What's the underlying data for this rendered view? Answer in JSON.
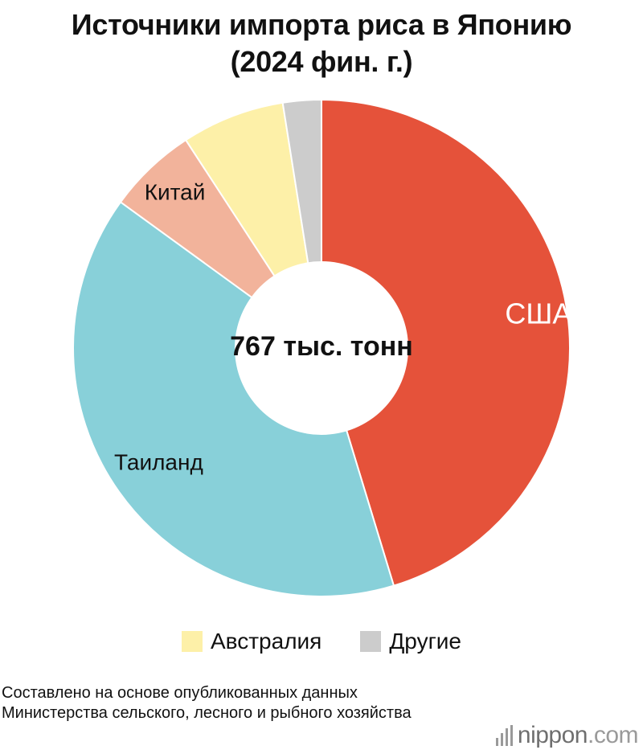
{
  "title_line1": "Источники импорта риса в Японию",
  "title_line2": "(2024 фин. г.)",
  "chart_data": {
    "type": "pie",
    "title": "Источники импорта риса в Японию (2024 фин. г.)",
    "center_label": "767 тыс. тонн",
    "slices": [
      {
        "label": "США",
        "value": 45.3,
        "color": "#e5523a",
        "label_color": "#ffffff",
        "show_label": true
      },
      {
        "label": "Таиланд",
        "value": 39.7,
        "color": "#88d0d9",
        "label_color": "#111111",
        "show_label": true
      },
      {
        "label": "Китай",
        "value": 5.8,
        "color": "#f2b39b",
        "label_color": "#111111",
        "show_label": true
      },
      {
        "label": "Австралия",
        "value": 6.7,
        "color": "#fdf0a8",
        "label_color": "#111111",
        "show_label": false
      },
      {
        "label": "Другие",
        "value": 2.5,
        "color": "#cccccc",
        "label_color": "#111111",
        "show_label": false
      }
    ],
    "legend": [
      {
        "label": "Австралия",
        "color": "#fdf0a8"
      },
      {
        "label": "Другие",
        "color": "#cccccc"
      }
    ],
    "legend_position": "bottom"
  },
  "source": "Составлено на основе опубликованных данных Министерства сельского, лесного и рыбного хозяйства",
  "logo": {
    "name": "nippon",
    "suffix": ".com"
  }
}
